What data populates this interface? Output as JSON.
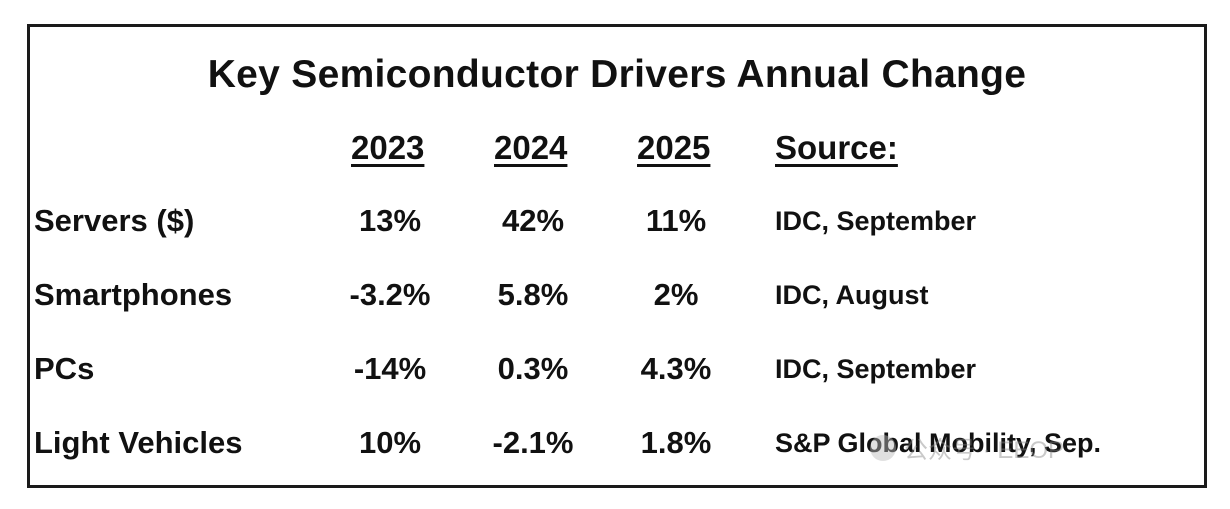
{
  "chart_data": {
    "type": "table",
    "title": "Key Semiconductor Drivers Annual Change",
    "columns": [
      "2023",
      "2024",
      "2025",
      "Source:"
    ],
    "rows": [
      {
        "label": "Servers ($)",
        "values": [
          "13%",
          "42%",
          "11%"
        ],
        "source": "IDC, September"
      },
      {
        "label": "Smartphones",
        "values": [
          "-3.2%",
          "5.8%",
          "2%"
        ],
        "source": "IDC, August"
      },
      {
        "label": "PCs",
        "values": [
          "-14%",
          "0.3%",
          "4.3%"
        ],
        "source": "IDC, September"
      },
      {
        "label": "Light Vehicles",
        "values": [
          "10%",
          "-2.1%",
          "1.8%"
        ],
        "source": "S&P Global Mobility, Sep."
      }
    ]
  },
  "watermark": {
    "text": "公众号 · EEOP"
  }
}
